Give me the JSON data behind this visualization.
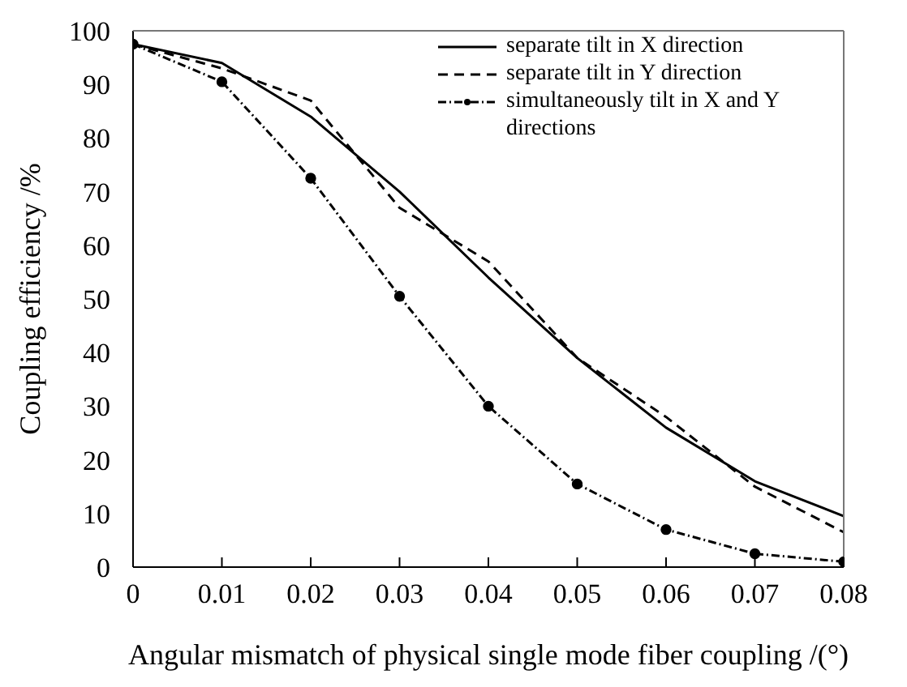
{
  "chart_data": {
    "type": "line",
    "xlabel": "Angular mismatch of physical single mode fiber coupling /(°)",
    "ylabel": "Coupling efficiency /%",
    "x": [
      0,
      0.01,
      0.02,
      0.03,
      0.04,
      0.05,
      0.06,
      0.07,
      0.08
    ],
    "xlim": [
      0,
      0.08
    ],
    "xticks": [
      0,
      0.01,
      0.02,
      0.03,
      0.04,
      0.05,
      0.06,
      0.07,
      0.08
    ],
    "ylim": [
      0,
      100
    ],
    "yticks": [
      0,
      10,
      20,
      30,
      40,
      50,
      60,
      70,
      80,
      90,
      100
    ],
    "grid": false,
    "legend": "top right",
    "series": [
      {
        "name": "separate tilt in X direction",
        "color": "#000000",
        "line_style": "solid",
        "marker": "none",
        "values": [
          97.5,
          94,
          84,
          70,
          54,
          39,
          26,
          16,
          9.5
        ]
      },
      {
        "name": "separate tilt in Y direction",
        "color": "#000000",
        "line_style": "dashed",
        "marker": "none",
        "values": [
          97.5,
          93,
          87,
          67,
          57,
          39,
          28,
          15,
          6.5
        ]
      },
      {
        "name": "simultaneously tilt in X and Y directions",
        "color": "#000000",
        "line_style": "dotted",
        "marker": "circle",
        "values": [
          97.5,
          90.5,
          72.5,
          50.5,
          30,
          15.5,
          7,
          2.5,
          1
        ]
      }
    ]
  }
}
